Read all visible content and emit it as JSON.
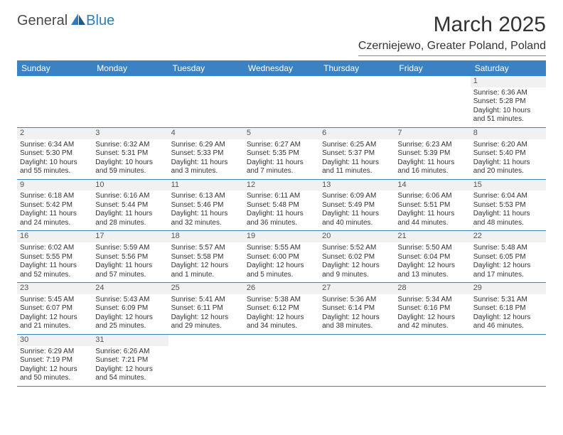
{
  "branding": {
    "logo_part1": "General",
    "logo_part2": "Blue",
    "logo_fill": "#2f7bbf"
  },
  "header": {
    "month_title": "March 2025",
    "location": "Czerniejewo, Greater Poland, Poland"
  },
  "colors": {
    "header_bg": "#3b82c4",
    "header_fg": "#ffffff",
    "border": "#3b82c4",
    "daynum_bg": "#f1f1f1",
    "text": "#333333"
  },
  "dayHeaders": [
    "Sunday",
    "Monday",
    "Tuesday",
    "Wednesday",
    "Thursday",
    "Friday",
    "Saturday"
  ],
  "weeks": [
    [
      {
        "blank": true
      },
      {
        "blank": true
      },
      {
        "blank": true
      },
      {
        "blank": true
      },
      {
        "blank": true
      },
      {
        "blank": true
      },
      {
        "day": "1",
        "sunrise": "Sunrise: 6:36 AM",
        "sunset": "Sunset: 5:28 PM",
        "daylight1": "Daylight: 10 hours",
        "daylight2": "and 51 minutes."
      }
    ],
    [
      {
        "day": "2",
        "sunrise": "Sunrise: 6:34 AM",
        "sunset": "Sunset: 5:30 PM",
        "daylight1": "Daylight: 10 hours",
        "daylight2": "and 55 minutes."
      },
      {
        "day": "3",
        "sunrise": "Sunrise: 6:32 AM",
        "sunset": "Sunset: 5:31 PM",
        "daylight1": "Daylight: 10 hours",
        "daylight2": "and 59 minutes."
      },
      {
        "day": "4",
        "sunrise": "Sunrise: 6:29 AM",
        "sunset": "Sunset: 5:33 PM",
        "daylight1": "Daylight: 11 hours",
        "daylight2": "and 3 minutes."
      },
      {
        "day": "5",
        "sunrise": "Sunrise: 6:27 AM",
        "sunset": "Sunset: 5:35 PM",
        "daylight1": "Daylight: 11 hours",
        "daylight2": "and 7 minutes."
      },
      {
        "day": "6",
        "sunrise": "Sunrise: 6:25 AM",
        "sunset": "Sunset: 5:37 PM",
        "daylight1": "Daylight: 11 hours",
        "daylight2": "and 11 minutes."
      },
      {
        "day": "7",
        "sunrise": "Sunrise: 6:23 AM",
        "sunset": "Sunset: 5:39 PM",
        "daylight1": "Daylight: 11 hours",
        "daylight2": "and 16 minutes."
      },
      {
        "day": "8",
        "sunrise": "Sunrise: 6:20 AM",
        "sunset": "Sunset: 5:40 PM",
        "daylight1": "Daylight: 11 hours",
        "daylight2": "and 20 minutes."
      }
    ],
    [
      {
        "day": "9",
        "sunrise": "Sunrise: 6:18 AM",
        "sunset": "Sunset: 5:42 PM",
        "daylight1": "Daylight: 11 hours",
        "daylight2": "and 24 minutes."
      },
      {
        "day": "10",
        "sunrise": "Sunrise: 6:16 AM",
        "sunset": "Sunset: 5:44 PM",
        "daylight1": "Daylight: 11 hours",
        "daylight2": "and 28 minutes."
      },
      {
        "day": "11",
        "sunrise": "Sunrise: 6:13 AM",
        "sunset": "Sunset: 5:46 PM",
        "daylight1": "Daylight: 11 hours",
        "daylight2": "and 32 minutes."
      },
      {
        "day": "12",
        "sunrise": "Sunrise: 6:11 AM",
        "sunset": "Sunset: 5:48 PM",
        "daylight1": "Daylight: 11 hours",
        "daylight2": "and 36 minutes."
      },
      {
        "day": "13",
        "sunrise": "Sunrise: 6:09 AM",
        "sunset": "Sunset: 5:49 PM",
        "daylight1": "Daylight: 11 hours",
        "daylight2": "and 40 minutes."
      },
      {
        "day": "14",
        "sunrise": "Sunrise: 6:06 AM",
        "sunset": "Sunset: 5:51 PM",
        "daylight1": "Daylight: 11 hours",
        "daylight2": "and 44 minutes."
      },
      {
        "day": "15",
        "sunrise": "Sunrise: 6:04 AM",
        "sunset": "Sunset: 5:53 PM",
        "daylight1": "Daylight: 11 hours",
        "daylight2": "and 48 minutes."
      }
    ],
    [
      {
        "day": "16",
        "sunrise": "Sunrise: 6:02 AM",
        "sunset": "Sunset: 5:55 PM",
        "daylight1": "Daylight: 11 hours",
        "daylight2": "and 52 minutes."
      },
      {
        "day": "17",
        "sunrise": "Sunrise: 5:59 AM",
        "sunset": "Sunset: 5:56 PM",
        "daylight1": "Daylight: 11 hours",
        "daylight2": "and 57 minutes."
      },
      {
        "day": "18",
        "sunrise": "Sunrise: 5:57 AM",
        "sunset": "Sunset: 5:58 PM",
        "daylight1": "Daylight: 12 hours",
        "daylight2": "and 1 minute."
      },
      {
        "day": "19",
        "sunrise": "Sunrise: 5:55 AM",
        "sunset": "Sunset: 6:00 PM",
        "daylight1": "Daylight: 12 hours",
        "daylight2": "and 5 minutes."
      },
      {
        "day": "20",
        "sunrise": "Sunrise: 5:52 AM",
        "sunset": "Sunset: 6:02 PM",
        "daylight1": "Daylight: 12 hours",
        "daylight2": "and 9 minutes."
      },
      {
        "day": "21",
        "sunrise": "Sunrise: 5:50 AM",
        "sunset": "Sunset: 6:04 PM",
        "daylight1": "Daylight: 12 hours",
        "daylight2": "and 13 minutes."
      },
      {
        "day": "22",
        "sunrise": "Sunrise: 5:48 AM",
        "sunset": "Sunset: 6:05 PM",
        "daylight1": "Daylight: 12 hours",
        "daylight2": "and 17 minutes."
      }
    ],
    [
      {
        "day": "23",
        "sunrise": "Sunrise: 5:45 AM",
        "sunset": "Sunset: 6:07 PM",
        "daylight1": "Daylight: 12 hours",
        "daylight2": "and 21 minutes."
      },
      {
        "day": "24",
        "sunrise": "Sunrise: 5:43 AM",
        "sunset": "Sunset: 6:09 PM",
        "daylight1": "Daylight: 12 hours",
        "daylight2": "and 25 minutes."
      },
      {
        "day": "25",
        "sunrise": "Sunrise: 5:41 AM",
        "sunset": "Sunset: 6:11 PM",
        "daylight1": "Daylight: 12 hours",
        "daylight2": "and 29 minutes."
      },
      {
        "day": "26",
        "sunrise": "Sunrise: 5:38 AM",
        "sunset": "Sunset: 6:12 PM",
        "daylight1": "Daylight: 12 hours",
        "daylight2": "and 34 minutes."
      },
      {
        "day": "27",
        "sunrise": "Sunrise: 5:36 AM",
        "sunset": "Sunset: 6:14 PM",
        "daylight1": "Daylight: 12 hours",
        "daylight2": "and 38 minutes."
      },
      {
        "day": "28",
        "sunrise": "Sunrise: 5:34 AM",
        "sunset": "Sunset: 6:16 PM",
        "daylight1": "Daylight: 12 hours",
        "daylight2": "and 42 minutes."
      },
      {
        "day": "29",
        "sunrise": "Sunrise: 5:31 AM",
        "sunset": "Sunset: 6:18 PM",
        "daylight1": "Daylight: 12 hours",
        "daylight2": "and 46 minutes."
      }
    ],
    [
      {
        "day": "30",
        "sunrise": "Sunrise: 6:29 AM",
        "sunset": "Sunset: 7:19 PM",
        "daylight1": "Daylight: 12 hours",
        "daylight2": "and 50 minutes."
      },
      {
        "day": "31",
        "sunrise": "Sunrise: 6:26 AM",
        "sunset": "Sunset: 7:21 PM",
        "daylight1": "Daylight: 12 hours",
        "daylight2": "and 54 minutes."
      },
      {
        "blank": true
      },
      {
        "blank": true
      },
      {
        "blank": true
      },
      {
        "blank": true
      },
      {
        "blank": true
      }
    ]
  ]
}
